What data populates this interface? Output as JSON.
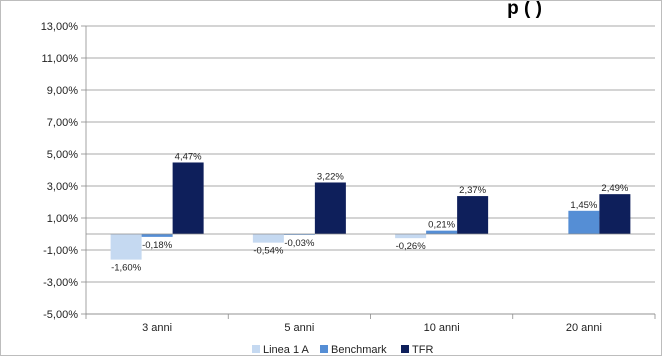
{
  "chart_data": {
    "type": "bar",
    "categories": [
      "3 anni",
      "5 anni",
      "10 anni",
      "20 anni"
    ],
    "series": [
      {
        "name": "Linea 1 A",
        "color": "#c5d9f1",
        "values": [
          -1.6,
          -0.54,
          -0.26,
          null
        ],
        "labels": [
          "-1,60%",
          "-0,54%",
          "-0,26%",
          null
        ]
      },
      {
        "name": "Benchmark",
        "color": "#558ed5",
        "values": [
          -0.18,
          -0.03,
          0.21,
          1.45
        ],
        "labels": [
          "-0,18%",
          "-0,03%",
          "0,21%",
          "1,45%"
        ]
      },
      {
        "name": "TFR",
        "color": "#0e1f5b",
        "values": [
          4.47,
          3.22,
          2.37,
          2.49
        ],
        "labels": [
          "4,47%",
          "3,22%",
          "2,37%",
          "2,49%"
        ]
      }
    ],
    "ylim": [
      -5,
      13
    ],
    "yticks": [
      13,
      11,
      9,
      7,
      5,
      3,
      1,
      -1,
      -3,
      -5
    ],
    "ytick_labels": [
      "13,00%",
      "11,00%",
      "9,00%",
      "7,00%",
      "5,00%",
      "3,00%",
      "1,00%",
      "-1,00%",
      "-3,00%",
      "-5,00%"
    ],
    "grid": true,
    "legend_position": "bottom",
    "title_fragment": "p (          )"
  }
}
